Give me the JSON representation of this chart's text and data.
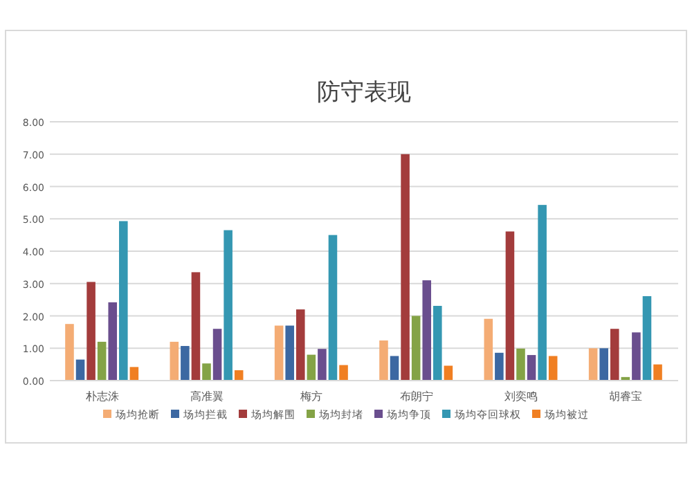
{
  "chart_data": {
    "type": "bar",
    "title": "防守表现",
    "categories": [
      "朴志洙",
      "高准翼",
      "梅方",
      "布朗宁",
      "刘奕鸣",
      "胡睿宝"
    ],
    "series": [
      {
        "name": "场均抢断",
        "color": "#f4ac74",
        "values": [
          1.75,
          1.2,
          1.7,
          1.24,
          1.91,
          1.0
        ]
      },
      {
        "name": "场均拦截",
        "color": "#3c68a2",
        "values": [
          0.65,
          1.07,
          1.7,
          0.76,
          0.86,
          1.0
        ]
      },
      {
        "name": "场均解围",
        "color": "#a33c3c",
        "values": [
          3.05,
          3.35,
          2.2,
          7.0,
          4.61,
          1.6
        ]
      },
      {
        "name": "场均封堵",
        "color": "#84a346",
        "values": [
          1.2,
          0.53,
          0.8,
          2.0,
          0.99,
          0.11
        ]
      },
      {
        "name": "场均争顶",
        "color": "#6a4e8e",
        "values": [
          2.42,
          1.6,
          0.98,
          3.1,
          0.79,
          1.49
        ]
      },
      {
        "name": "场均夺回球权",
        "color": "#3497b2",
        "values": [
          4.93,
          4.65,
          4.5,
          2.31,
          5.43,
          2.61
        ]
      },
      {
        "name": "场均被过",
        "color": "#f07f22",
        "values": [
          0.42,
          0.32,
          0.48,
          0.46,
          0.76,
          0.5
        ]
      }
    ],
    "ylim": [
      0,
      8
    ],
    "yticks": [
      {
        "value": 0,
        "label": "0.00"
      },
      {
        "value": 1,
        "label": "1.00"
      },
      {
        "value": 2,
        "label": "2.00"
      },
      {
        "value": 3,
        "label": "3.00"
      },
      {
        "value": 4,
        "label": "4.00"
      },
      {
        "value": 5,
        "label": "5.00"
      },
      {
        "value": 6,
        "label": "6.00"
      },
      {
        "value": 7,
        "label": "7.00"
      },
      {
        "value": 8,
        "label": "8.00"
      }
    ],
    "grid": "y",
    "legend": "bottom"
  }
}
